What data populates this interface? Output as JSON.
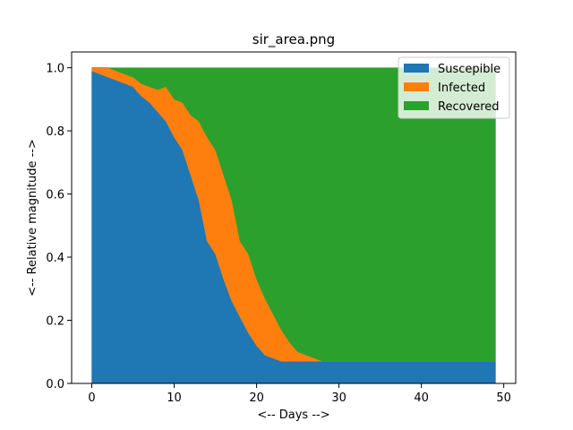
{
  "chart_data": {
    "type": "area",
    "stacked": true,
    "title": "sir_area.png",
    "xlabel": "<-- Days -->",
    "ylabel": "<-- Relative magnitude -->",
    "xlim": [
      -2.45,
      51.45
    ],
    "ylim": [
      0,
      1.05
    ],
    "xticks": [
      0,
      10,
      20,
      30,
      40,
      50
    ],
    "yticks": [
      0.0,
      0.2,
      0.4,
      0.6,
      0.8,
      1.0
    ],
    "xtick_labels": [
      "0",
      "10",
      "20",
      "30",
      "40",
      "50"
    ],
    "ytick_labels": [
      "0.0",
      "0.2",
      "0.4",
      "0.6",
      "0.8",
      "1.0"
    ],
    "grid": false,
    "legend_position": "top-right",
    "x": [
      0,
      1,
      2,
      3,
      4,
      5,
      6,
      7,
      8,
      9,
      10,
      11,
      12,
      13,
      14,
      15,
      16,
      17,
      18,
      19,
      20,
      21,
      22,
      23,
      24,
      25,
      26,
      27,
      28,
      29,
      30,
      31,
      32,
      33,
      34,
      35,
      36,
      37,
      38,
      39,
      40,
      41,
      42,
      43,
      44,
      45,
      46,
      47,
      48,
      49
    ],
    "series": [
      {
        "name": "Suscepible",
        "color": "#1f77b4",
        "values": [
          0.99,
          0.98,
          0.97,
          0.96,
          0.95,
          0.94,
          0.91,
          0.89,
          0.86,
          0.83,
          0.78,
          0.74,
          0.66,
          0.58,
          0.45,
          0.41,
          0.33,
          0.26,
          0.21,
          0.16,
          0.12,
          0.09,
          0.08,
          0.07,
          0.07,
          0.07,
          0.07,
          0.07,
          0.07,
          0.07,
          0.07,
          0.07,
          0.07,
          0.07,
          0.07,
          0.07,
          0.07,
          0.07,
          0.07,
          0.07,
          0.07,
          0.07,
          0.07,
          0.07,
          0.07,
          0.07,
          0.07,
          0.07,
          0.07,
          0.07
        ]
      },
      {
        "name": "Infected",
        "color": "#ff7f0e",
        "values": [
          0.01,
          0.02,
          0.03,
          0.03,
          0.03,
          0.03,
          0.04,
          0.05,
          0.07,
          0.11,
          0.12,
          0.15,
          0.19,
          0.25,
          0.33,
          0.33,
          0.33,
          0.32,
          0.24,
          0.25,
          0.21,
          0.18,
          0.14,
          0.1,
          0.06,
          0.03,
          0.02,
          0.01,
          0.0,
          0.0,
          0.0,
          0.0,
          0.0,
          0.0,
          0.0,
          0.0,
          0.0,
          0.0,
          0.0,
          0.0,
          0.0,
          0.0,
          0.0,
          0.0,
          0.0,
          0.0,
          0.0,
          0.0,
          0.0,
          0.0
        ]
      },
      {
        "name": "Recovered",
        "color": "#2ca02c",
        "values": [
          0.0,
          0.0,
          0.0,
          0.01,
          0.02,
          0.03,
          0.05,
          0.06,
          0.07,
          0.06,
          0.1,
          0.11,
          0.15,
          0.17,
          0.22,
          0.26,
          0.34,
          0.42,
          0.55,
          0.59,
          0.67,
          0.73,
          0.78,
          0.83,
          0.87,
          0.9,
          0.91,
          0.92,
          0.93,
          0.93,
          0.93,
          0.93,
          0.93,
          0.93,
          0.93,
          0.93,
          0.93,
          0.93,
          0.93,
          0.93,
          0.93,
          0.93,
          0.93,
          0.93,
          0.93,
          0.93,
          0.93,
          0.93,
          0.93,
          0.93
        ]
      }
    ]
  }
}
